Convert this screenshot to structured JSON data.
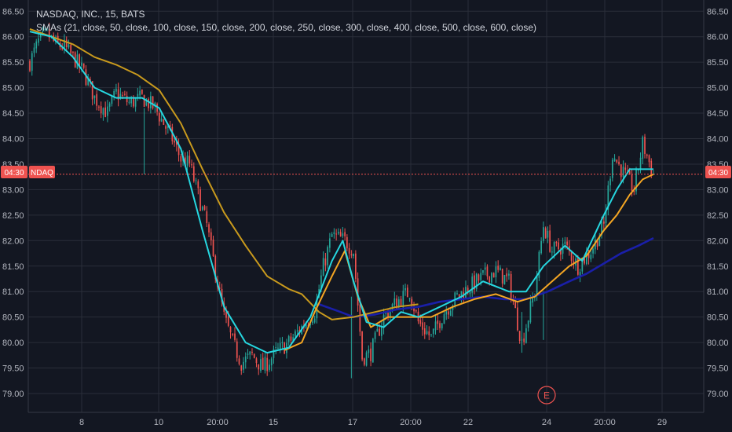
{
  "legend": {
    "line1": "NASDAQ, INC., 15, BATS",
    "line2": "SMAs (21, close, 50, close, 100, close, 150, close, 200, close, 250, close, 300, close, 400, close, 500, close, 600, close)"
  },
  "badges": {
    "time_left": "04:30",
    "symbol": "NDAQ",
    "time_right": "04:30",
    "earnings": "E"
  },
  "colors": {
    "background": "#131722",
    "grid": "#2a2e39",
    "up": "#26a69a",
    "down": "#ef5350",
    "sma_cyan": "#26d7e0",
    "sma_orange": "#f5a623",
    "sma_gold": "#c99a1d",
    "sma_navy": "#1a1fa8",
    "price_line": "#ef5350"
  },
  "chart_data": {
    "type": "candlestick",
    "title": "NASDAQ, INC., 15, BATS",
    "subtitle": "SMAs (21, close, 50, close, 100, close, 150, close, 200, close, 250, close, 300, close, 400, close, 500, close, 600, close)",
    "x_tick_labels": [
      "8",
      "10",
      "20:00",
      "15",
      "17",
      "20:00",
      "22",
      "24",
      "20:00",
      "29"
    ],
    "y_ticks": [
      79.0,
      79.5,
      80.0,
      80.5,
      81.0,
      81.5,
      82.0,
      82.5,
      83.0,
      83.5,
      84.0,
      84.5,
      85.0,
      85.5,
      86.0,
      86.5
    ],
    "ylim": [
      78.8,
      86.6
    ],
    "current_price": 83.3,
    "price_path": [
      [
        0,
        85.5
      ],
      [
        4,
        85.9
      ],
      [
        8,
        86.05
      ],
      [
        12,
        85.85
      ],
      [
        16,
        85.8
      ],
      [
        20,
        85.6
      ],
      [
        25,
        85.3
      ],
      [
        30,
        84.8
      ],
      [
        36,
        84.5
      ],
      [
        40,
        84.9
      ],
      [
        46,
        84.7
      ],
      [
        52,
        84.8
      ],
      [
        58,
        84.6
      ],
      [
        62,
        84.3
      ],
      [
        66,
        84.0
      ],
      [
        70,
        83.6
      ],
      [
        74,
        83.5
      ],
      [
        78,
        82.9
      ],
      [
        82,
        82.3
      ],
      [
        86,
        81.4
      ],
      [
        90,
        80.5
      ],
      [
        94,
        80.0
      ],
      [
        98,
        79.6
      ],
      [
        103,
        79.75
      ],
      [
        108,
        79.5
      ],
      [
        114,
        79.8
      ],
      [
        120,
        80.0
      ],
      [
        126,
        80.3
      ],
      [
        132,
        80.6
      ],
      [
        136,
        81.5
      ],
      [
        140,
        82.1
      ],
      [
        146,
        82.0
      ],
      [
        150,
        81.8
      ],
      [
        154,
        79.7
      ],
      [
        158,
        79.8
      ],
      [
        164,
        80.5
      ],
      [
        170,
        80.8
      ],
      [
        176,
        81.0
      ],
      [
        180,
        80.4
      ],
      [
        186,
        80.1
      ],
      [
        192,
        80.6
      ],
      [
        198,
        80.9
      ],
      [
        204,
        81.1
      ],
      [
        210,
        81.3
      ],
      [
        216,
        81.4
      ],
      [
        222,
        81.2
      ],
      [
        228,
        80.0
      ],
      [
        234,
        81.0
      ],
      [
        238,
        82.3
      ],
      [
        242,
        81.8
      ],
      [
        248,
        81.9
      ],
      [
        254,
        81.5
      ],
      [
        260,
        81.8
      ],
      [
        266,
        82.3
      ],
      [
        270,
        83.7
      ],
      [
        274,
        83.4
      ],
      [
        280,
        83.0
      ],
      [
        284,
        83.9
      ],
      [
        289,
        83.3
      ]
    ],
    "candle_count": 290,
    "series": [
      {
        "name": "SMA 21",
        "color": "#26d7e0",
        "x": [
          0,
          10,
          20,
          30,
          40,
          52,
          60,
          70,
          80,
          90,
          100,
          110,
          120,
          130,
          140,
          145,
          150,
          156,
          164,
          172,
          180,
          190,
          200,
          210,
          222,
          230,
          238,
          248,
          256,
          266,
          272,
          278,
          289
        ],
        "values": [
          86.1,
          86.0,
          85.6,
          85.0,
          84.8,
          84.8,
          84.6,
          83.8,
          82.2,
          80.7,
          80.0,
          79.8,
          79.9,
          80.5,
          81.6,
          82.0,
          81.2,
          80.4,
          80.3,
          80.6,
          80.5,
          80.7,
          80.9,
          81.2,
          81.0,
          81.0,
          81.5,
          81.9,
          81.6,
          82.5,
          83.0,
          83.4,
          83.4
        ]
      },
      {
        "name": "SMA 50",
        "color": "#f5a623",
        "x": [
          118,
          126,
          132,
          140,
          146,
          152,
          158,
          166,
          176,
          186,
          196,
          206,
          216,
          226,
          234,
          242,
          250,
          258,
          266,
          272,
          278,
          284,
          289
        ],
        "values": [
          79.85,
          80.0,
          80.6,
          81.3,
          81.8,
          80.9,
          80.3,
          80.5,
          80.5,
          80.5,
          80.7,
          80.85,
          80.95,
          80.8,
          80.9,
          81.2,
          81.5,
          81.7,
          82.2,
          82.5,
          82.9,
          83.2,
          83.3
        ]
      },
      {
        "name": "SMA 100",
        "color": "#c99a1d",
        "x": [
          0,
          10,
          20,
          30,
          40,
          50,
          60,
          70,
          80,
          90,
          100,
          110,
          120,
          126,
          134,
          140,
          150,
          160,
          170,
          180
        ],
        "values": [
          86.15,
          86.0,
          85.85,
          85.6,
          85.45,
          85.25,
          84.95,
          84.3,
          83.4,
          82.55,
          81.9,
          81.3,
          81.05,
          80.95,
          80.6,
          80.45,
          80.5,
          80.6,
          80.7,
          80.75
        ]
      },
      {
        "name": "SMA 150",
        "color": "#1a1fa8",
        "x": [
          134,
          144,
          150,
          160,
          170,
          180,
          190,
          200,
          210,
          220,
          230,
          240,
          250,
          258,
          266,
          274,
          282,
          289
        ],
        "values": [
          80.75,
          80.6,
          80.5,
          80.55,
          80.65,
          80.7,
          80.8,
          80.85,
          80.9,
          80.85,
          80.85,
          81.0,
          81.2,
          81.35,
          81.55,
          81.75,
          81.9,
          82.05
        ]
      }
    ],
    "annotations": [
      "E"
    ],
    "grid": true
  }
}
